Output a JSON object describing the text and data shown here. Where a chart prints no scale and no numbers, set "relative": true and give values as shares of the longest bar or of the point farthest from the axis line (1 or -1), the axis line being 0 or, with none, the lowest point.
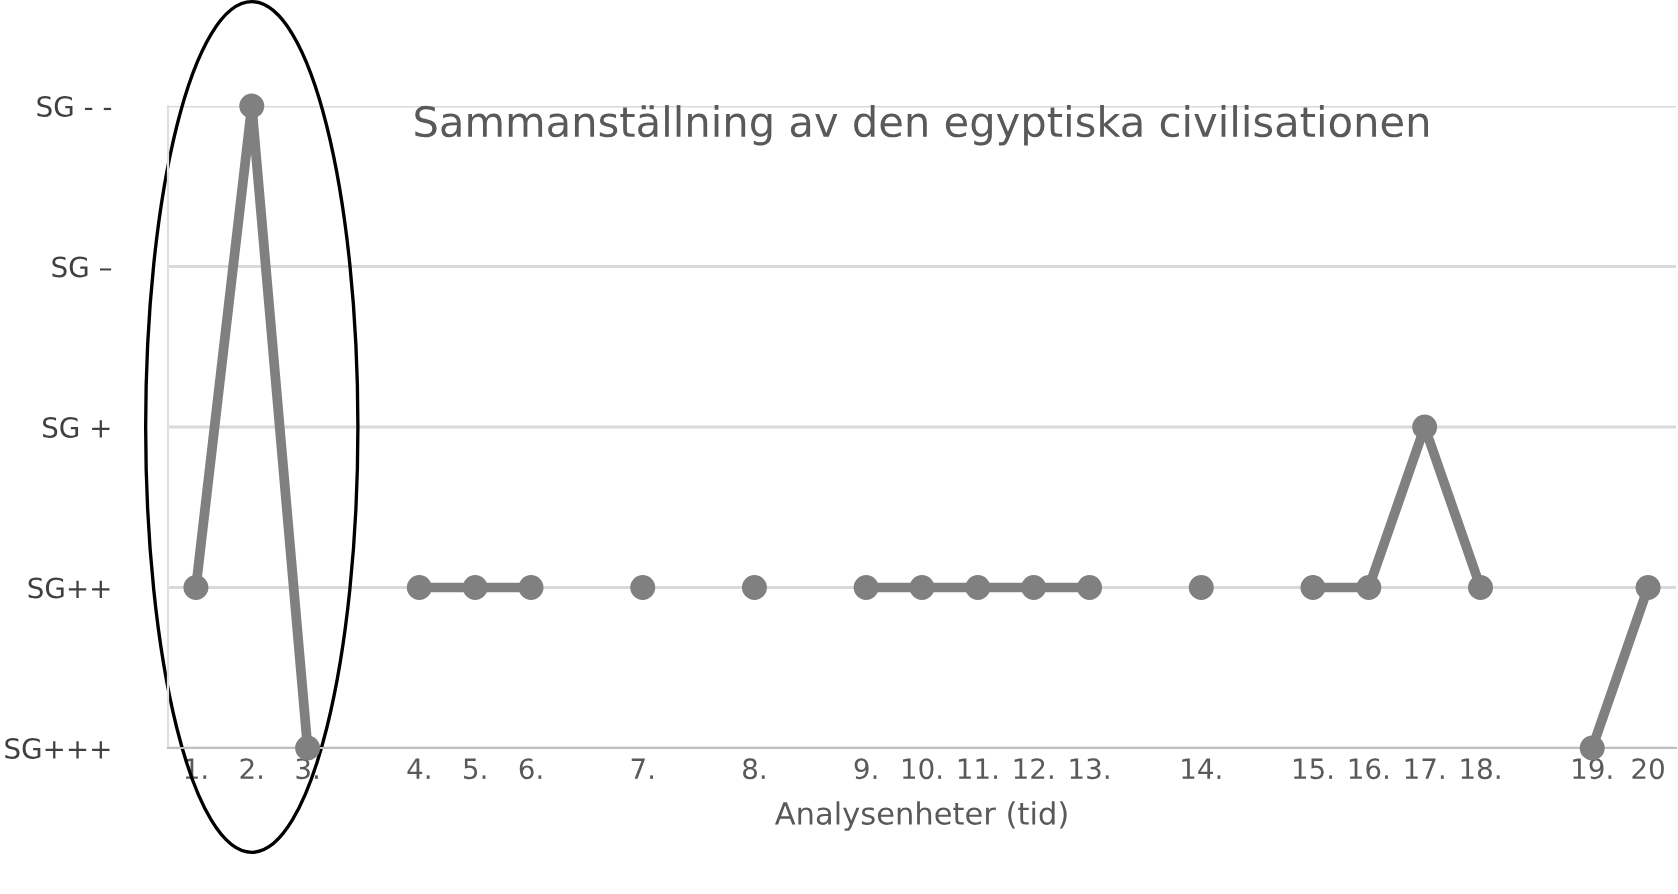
{
  "chart_data": {
    "type": "line",
    "title": "Sammanställning av den egyptiska civilisationen",
    "xlabel": "Analysenheter (tid)",
    "categories": [
      "1.",
      "2.",
      "3.",
      null,
      "4.",
      "5.",
      "6.",
      null,
      "7.",
      null,
      "8.",
      null,
      "9.",
      "10.",
      "11.",
      "12.",
      "13.",
      null,
      "14.",
      null,
      "15.",
      "16.",
      "17.",
      "18.",
      null,
      "19.",
      "20"
    ],
    "series": [
      {
        "color": "#808080",
        "values": [
          0.25,
          1,
          0,
          null,
          0.25,
          0.25,
          0.25,
          null,
          0.25,
          null,
          0.25,
          null,
          0.25,
          0.25,
          0.25,
          0.25,
          0.25,
          null,
          0.25,
          null,
          0.25,
          0.25,
          0.5,
          0.25,
          null,
          0,
          0.25
        ]
      }
    ],
    "relative": true,
    "y_categories": [
      "SG - -",
      "SG –",
      "SG +",
      "SG++",
      "SG+++"
    ],
    "grid": "y",
    "marker": "circle",
    "line_style": "solid"
  }
}
